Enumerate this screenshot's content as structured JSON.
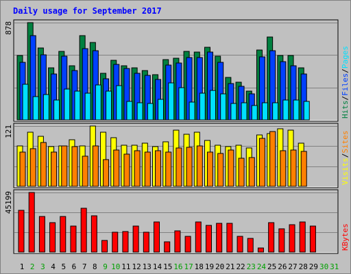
{
  "chart_data": {
    "type": "bar",
    "title": "Daily usage for September 2017",
    "categories": [
      "1",
      "2",
      "3",
      "4",
      "5",
      "6",
      "7",
      "8",
      "9",
      "10",
      "11",
      "12",
      "13",
      "14",
      "15",
      "16",
      "17",
      "18",
      "19",
      "20",
      "21",
      "22",
      "23",
      "24",
      "25",
      "26",
      "27",
      "28",
      "29",
      "30",
      "31"
    ],
    "weekend_days": [
      "2",
      "3",
      "9",
      "10",
      "16",
      "17",
      "23",
      "24",
      "30",
      "31"
    ],
    "colors": {
      "title": "#0000ff",
      "hits": "#008040",
      "files": "#0040ff",
      "pages": "#00e0ff",
      "visits": "#ffff00",
      "sites": "#ff8000",
      "kbytes": "#ff0000",
      "weekday_label": "#000000",
      "weekend_label": "#00a000",
      "panel_bg": "#c0c0c0",
      "grid": "#808080"
    },
    "panels": [
      {
        "id": "hits",
        "ymax_label": "878",
        "ymax": 878,
        "legend": [
          {
            "text": "Hits",
            "color": "#008040"
          },
          {
            "text": "/",
            "color": "#000000"
          },
          {
            "text": "Files",
            "color": "#0040ff"
          },
          {
            "text": "/",
            "color": "#000000"
          },
          {
            "text": "Pages",
            "color": "#00e0ff"
          }
        ],
        "series": [
          {
            "name": "Hits",
            "color": "#008040",
            "values": [
              580,
              878,
              652,
              473,
              618,
              491,
              760,
              698,
              418,
              539,
              488,
              473,
              443,
              409,
              542,
              555,
              617,
              612,
              656,
              576,
              383,
              342,
              258,
              628,
              746,
              581,
              579,
              470,
              0,
              0,
              0
            ]
          },
          {
            "name": "Files",
            "color": "#0040ff",
            "values": [
              518,
              760,
              589,
              415,
              572,
              444,
              645,
              625,
              368,
              501,
              461,
              422,
              402,
              363,
              492,
              511,
              565,
              563,
              611,
              519,
              326,
              305,
              237,
              567,
              627,
              527,
              487,
              414,
              0,
              0,
              0
            ]
          },
          {
            "name": "Pages",
            "color": "#00e0ff",
            "values": [
              319,
              213,
              231,
              181,
              276,
              262,
              243,
              313,
              261,
              310,
              167,
              155,
              148,
              186,
              333,
              290,
              161,
              244,
              266,
              236,
              148,
              157,
              128,
              155,
              155,
              177,
              178,
              167,
              0,
              0,
              0
            ]
          }
        ]
      },
      {
        "id": "visits",
        "ymax_label": "121",
        "ymax": 121,
        "legend": [
          {
            "text": "Visits",
            "color": "#ffff00"
          },
          {
            "text": "/",
            "color": "#000000"
          },
          {
            "text": "Sites",
            "color": "#ff8000"
          }
        ],
        "series": [
          {
            "name": "Visits",
            "color": "#ffff00",
            "values": [
              81,
              108,
              101,
              80,
              81,
              94,
              81,
              121,
              109,
              98,
              82,
              83,
              86,
              80,
              89,
              113,
              105,
              109,
              92,
              83,
              80,
              83,
              77,
              103,
              106,
              116,
              113,
              87,
              0,
              0,
              0
            ]
          },
          {
            "name": "Sites",
            "color": "#ff8000",
            "values": [
              69,
              75,
              88,
              69,
              81,
              80,
              61,
              81,
              54,
              73,
              65,
              72,
              69,
              72,
              69,
              77,
              79,
              81,
              69,
              66,
              73,
              57,
              58,
              96,
              110,
              71,
              73,
              70,
              0,
              0,
              0
            ]
          }
        ]
      },
      {
        "id": "kbytes",
        "ymax_label": "45199",
        "ymax": 45199,
        "legend": [
          {
            "text": "KBytes",
            "color": "#ff0000"
          }
        ],
        "series": [
          {
            "name": "KBytes",
            "color": "#ff0000",
            "values": [
              31500,
              45199,
              27000,
              22500,
              27000,
              19500,
              33000,
              27500,
              9000,
              15000,
              15500,
              19500,
              15000,
              23000,
              8000,
              16000,
              12000,
              23000,
              20500,
              22000,
              22000,
              12000,
              10500,
              3000,
              22500,
              17500,
              21000,
              23000,
              19500,
              0,
              0
            ]
          }
        ]
      }
    ]
  }
}
